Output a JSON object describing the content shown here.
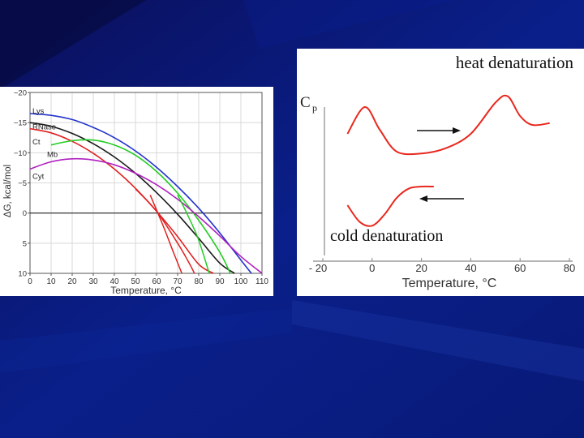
{
  "colors": {
    "background": "#071a7a",
    "Lys": "#2233cc",
    "RNase": "#1a1a1a",
    "Ct": "#e02020",
    "Mb": "#22cc22",
    "Cyt": "#b020c0",
    "cp_curve": "#e8281e"
  },
  "chart_data": [
    {
      "type": "line",
      "ylabel": "ΔG, kcal/mol",
      "xlabel": "Temperature, °C",
      "xlim": [
        0,
        110
      ],
      "ylim": [
        -20,
        10
      ],
      "y_inverted": true,
      "grid": true,
      "x_ticks": [
        "0",
        "10",
        "20",
        "30",
        "40",
        "50",
        "60",
        "70",
        "80",
        "90",
        "100",
        "110"
      ],
      "y_ticks": [
        "−20",
        "−15",
        "−10",
        "−5",
        "0",
        "5",
        "10"
      ],
      "series": [
        {
          "name": "Lys",
          "color_key": "Lys",
          "x": [
            0,
            10,
            20,
            30,
            40,
            50,
            60,
            70,
            80,
            90,
            100,
            105
          ],
          "y": [
            -16.5,
            -16.2,
            -15.5,
            -14.2,
            -12.5,
            -10.3,
            -7.6,
            -4.4,
            -0.8,
            3.3,
            7.8,
            10
          ]
        },
        {
          "name": "RNase",
          "color_key": "RNase",
          "x": [
            0,
            10,
            20,
            30,
            40,
            50,
            60,
            70,
            80,
            90,
            97
          ],
          "y": [
            -15,
            -14.4,
            -13.2,
            -11.5,
            -9.3,
            -6.6,
            -3.4,
            0.2,
            4.2,
            8.3,
            10
          ]
        },
        {
          "name": "Ct",
          "color_key": "Ct",
          "x": [
            0,
            10,
            20,
            30,
            40,
            50,
            60,
            70,
            80,
            87
          ],
          "y": [
            -14,
            -13.3,
            -11.9,
            -9.9,
            -7.3,
            -4.1,
            -0.3,
            3.9,
            8.5,
            10
          ]
        },
        {
          "name": "Mb",
          "color_key": "Mb",
          "x": [
            10,
            20,
            30,
            40,
            50,
            60,
            70,
            80,
            90,
            95
          ],
          "y": [
            -11.3,
            -12,
            -12.1,
            -11.3,
            -9.6,
            -6.9,
            -3.3,
            1.2,
            6.5,
            10
          ]
        },
        {
          "name": "Cyt",
          "color_key": "Cyt",
          "x": [
            0,
            10,
            20,
            30,
            40,
            50,
            60,
            70,
            80,
            90,
            100,
            110
          ],
          "y": [
            -7.3,
            -8.5,
            -9,
            -8.8,
            -8,
            -6.6,
            -4.7,
            -2.3,
            0.6,
            3.8,
            7.2,
            10
          ]
        }
      ],
      "vertical_curves": [
        {
          "color_key": "Ct",
          "x": [
            50,
            60,
            70,
            75,
            78
          ],
          "y": [
            -4,
            -0.3,
            5,
            8,
            10
          ]
        },
        {
          "color_key": "Ct",
          "x": [
            57,
            63,
            68,
            72
          ],
          "y": [
            -3,
            2,
            6.5,
            10
          ]
        },
        {
          "color_key": "Mb",
          "x": [
            70,
            75,
            80,
            85
          ],
          "y": [
            -3,
            0.5,
            4.5,
            10
          ]
        }
      ]
    },
    {
      "type": "line",
      "title": "heat denaturation",
      "annotation": "cold denaturation",
      "ylabel": "C",
      "ylabel_sub": "p",
      "xlabel": "Temperature, °C",
      "xlim": [
        -20,
        80
      ],
      "x_ticks": [
        "- 20",
        "0",
        "20",
        "40",
        "60",
        "80"
      ],
      "arrows": [
        {
          "direction": "right",
          "meaning": "heating"
        },
        {
          "direction": "left",
          "meaning": "cooling"
        }
      ],
      "series": [
        {
          "role": "heat",
          "color_key": "cp_curve",
          "x": [
            -10,
            -3,
            3,
            10,
            20,
            30,
            40,
            50,
            55,
            60,
            65,
            72
          ],
          "y": [
            0.3,
            0.6,
            0.35,
            0.1,
            0.08,
            0.14,
            0.3,
            0.65,
            0.72,
            0.5,
            0.4,
            0.42
          ]
        },
        {
          "role": "cold",
          "color_key": "cp_curve",
          "x": [
            -10,
            -5,
            0,
            5,
            10,
            15,
            20,
            25
          ],
          "y": [
            -0.2,
            -0.38,
            -0.42,
            -0.3,
            -0.12,
            -0.02,
            0,
            0
          ]
        }
      ]
    }
  ]
}
